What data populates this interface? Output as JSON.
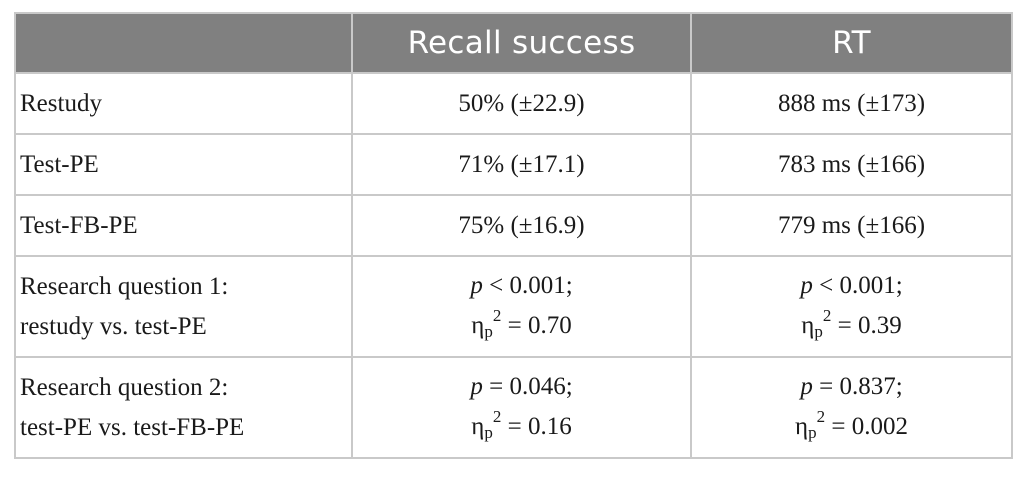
{
  "table": {
    "header": [
      "",
      "Recall success",
      "RT"
    ],
    "rows": [
      {
        "label": "Restudy",
        "recall": "50% (±22.9)",
        "rt": "888 ms (±173)"
      },
      {
        "label": "Test-PE",
        "recall": "71% (±17.1)",
        "rt": "783 ms (±166)"
      },
      {
        "label": "Test-FB-PE",
        "recall": "75% (±16.9)",
        "rt": "779 ms (±166)"
      }
    ],
    "questions": [
      {
        "label_line1": "Research question 1:",
        "label_line2": "restudy vs. test-PE",
        "recall_p_symbol": "p",
        "recall_p": " < 0.001;",
        "recall_eta_symbol": "η",
        "recall_eta_sub": "p",
        "recall_eta_sup": "2",
        "recall_eta": " = 0.70",
        "rt_p_symbol": "p",
        "rt_p": " < 0.001;",
        "rt_eta_symbol": "η",
        "rt_eta_sub": "p",
        "rt_eta_sup": "2",
        "rt_eta": " = 0.39"
      },
      {
        "label_line1": "Research question 2:",
        "label_line2": "test-PE vs. test-FB-PE",
        "recall_p_symbol": "p",
        "recall_p": " = 0.046;",
        "recall_eta_symbol": "η",
        "recall_eta_sub": "p",
        "recall_eta_sup": "2",
        "recall_eta": " = 0.16",
        "rt_p_symbol": "p",
        "rt_p": " = 0.837;",
        "rt_eta_symbol": "η",
        "rt_eta_sub": "p",
        "rt_eta_sup": "2",
        "rt_eta": " = 0.002"
      }
    ]
  },
  "colors": {
    "header_bg": "#808080",
    "header_text": "#ffffff",
    "border": "#c9c9c9",
    "text": "#1a1a1a"
  }
}
